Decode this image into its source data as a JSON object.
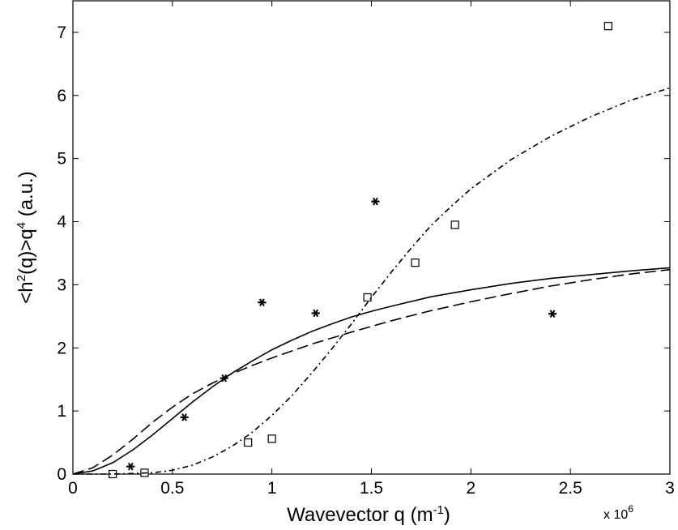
{
  "chart_data": {
    "type": "scatter",
    "xlabel": "Wavevector q (m",
    "xlabel_exponent": "-1",
    "xlabel_suffix": ")",
    "ylabel": "<h",
    "ylabel_sup1": "2",
    "ylabel_mid": "(q)>q",
    "ylabel_sup2": "4",
    "ylabel_suffix": " (a.u.)",
    "x_multiplier": "x 10",
    "x_multiplier_exponent": "6",
    "xlim": [
      0,
      3
    ],
    "ylim": [
      0,
      7.5
    ],
    "x_ticks": [
      0,
      0.5,
      1,
      1.5,
      2,
      2.5,
      3
    ],
    "x_tick_labels": [
      "0",
      "0.5",
      "1",
      "1.5",
      "2",
      "2.5",
      "3"
    ],
    "y_ticks": [
      0,
      1,
      2,
      3,
      4,
      5,
      6,
      7
    ],
    "y_tick_labels": [
      "0",
      "1",
      "2",
      "3",
      "4",
      "5",
      "6",
      "7"
    ],
    "grid": false,
    "legend": "none",
    "series": [
      {
        "marker": "square",
        "points": [
          {
            "x": 0.2,
            "y": 0.0
          },
          {
            "x": 0.36,
            "y": 0.02
          },
          {
            "x": 0.88,
            "y": 0.5
          },
          {
            "x": 1.0,
            "y": 0.56
          },
          {
            "x": 1.48,
            "y": 2.8
          },
          {
            "x": 1.72,
            "y": 3.35
          },
          {
            "x": 1.92,
            "y": 3.95
          },
          {
            "x": 2.69,
            "y": 7.1
          }
        ]
      },
      {
        "marker": "asterisk",
        "points": [
          {
            "x": 0.29,
            "y": 0.12
          },
          {
            "x": 0.56,
            "y": 0.9
          },
          {
            "x": 0.76,
            "y": 1.52
          },
          {
            "x": 0.95,
            "y": 2.72
          },
          {
            "x": 1.22,
            "y": 2.55
          },
          {
            "x": 1.52,
            "y": 4.32
          },
          {
            "x": 2.41,
            "y": 2.54
          }
        ]
      },
      {
        "line_style": "solid",
        "x": [
          0,
          0.1,
          0.2,
          0.3,
          0.4,
          0.5,
          0.6,
          0.7,
          0.8,
          0.9,
          1.0,
          1.1,
          1.2,
          1.3,
          1.4,
          1.5,
          1.6,
          1.8,
          2.0,
          2.2,
          2.4,
          2.6,
          2.8,
          3.0
        ],
        "y": [
          0,
          0.05,
          0.18,
          0.38,
          0.62,
          0.88,
          1.14,
          1.38,
          1.6,
          1.79,
          1.97,
          2.12,
          2.26,
          2.38,
          2.49,
          2.58,
          2.66,
          2.81,
          2.92,
          3.02,
          3.1,
          3.16,
          3.22,
          3.27
        ]
      },
      {
        "line_style": "dashed",
        "x": [
          0,
          0.1,
          0.2,
          0.3,
          0.4,
          0.5,
          0.6,
          0.7,
          0.8,
          0.9,
          1.0,
          1.2,
          1.4,
          1.6,
          1.8,
          2.0,
          2.2,
          2.4,
          2.6,
          2.8,
          3.0
        ],
        "y": [
          0,
          0.1,
          0.3,
          0.55,
          0.82,
          1.06,
          1.27,
          1.44,
          1.59,
          1.72,
          1.84,
          2.06,
          2.25,
          2.43,
          2.59,
          2.73,
          2.86,
          2.98,
          3.08,
          3.17,
          3.24
        ]
      },
      {
        "line_style": "dash-dot",
        "x": [
          0,
          0.2,
          0.4,
          0.5,
          0.6,
          0.7,
          0.8,
          0.9,
          1.0,
          1.1,
          1.2,
          1.3,
          1.4,
          1.5,
          1.6,
          1.7,
          1.8,
          1.9,
          2.0,
          2.2,
          2.4,
          2.6,
          2.8,
          3.0
        ],
        "y": [
          0,
          0.0,
          0.02,
          0.06,
          0.14,
          0.27,
          0.44,
          0.66,
          0.93,
          1.24,
          1.6,
          1.98,
          2.38,
          2.8,
          3.2,
          3.58,
          3.94,
          4.24,
          4.52,
          4.98,
          5.35,
          5.66,
          5.92,
          6.12
        ]
      }
    ]
  }
}
